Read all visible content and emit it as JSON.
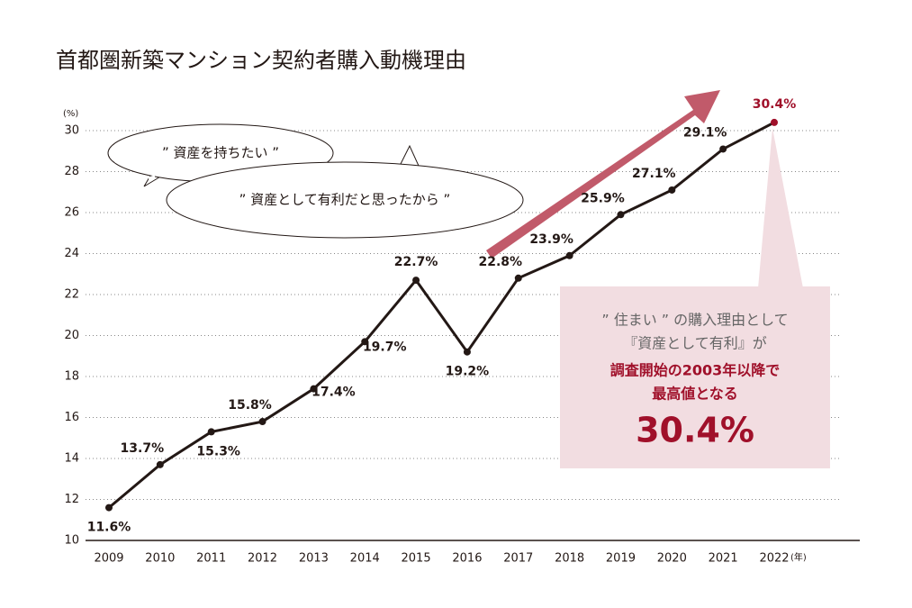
{
  "chart_data": {
    "type": "line",
    "title": "首都圏新築マンション契約者購入動機理由",
    "y_label": "(%)",
    "x_label": "(年)",
    "categories": [
      "2009",
      "2010",
      "2011",
      "2012",
      "2013",
      "2014",
      "2015",
      "2016",
      "2017",
      "2018",
      "2019",
      "2020",
      "2021",
      "2022"
    ],
    "series": [
      {
        "name": "資産として有利だと思ったから",
        "color": "#231815",
        "values": [
          11.6,
          13.7,
          15.3,
          15.8,
          17.4,
          19.7,
          22.7,
          19.2,
          22.8,
          23.9,
          25.9,
          27.1,
          29.1,
          30.4
        ],
        "value_labels": [
          "11.6%",
          "13.7%",
          "15.3%",
          "15.8%",
          "17.4%",
          "19.7%",
          "22.7%",
          "19.2%",
          "22.8%",
          "23.9%",
          "25.9%",
          "27.1%",
          "29.1%",
          "30.4%"
        ]
      }
    ],
    "highlight_color": "#a0102a",
    "ylim": [
      10,
      30
    ],
    "yticks": [
      10,
      12,
      14,
      16,
      18,
      20,
      22,
      24,
      26,
      28,
      30
    ],
    "grid": true,
    "annotations": {
      "bubble_1": "” 資産を持ちたい ”",
      "bubble_2": "” 資産として有利だと思ったから ”",
      "callout": [
        "” 住まい ” の購入理由として",
        "『資産として有利』が",
        "調査開始の2003年以降で",
        "最高値となる",
        "30.4%"
      ]
    }
  }
}
